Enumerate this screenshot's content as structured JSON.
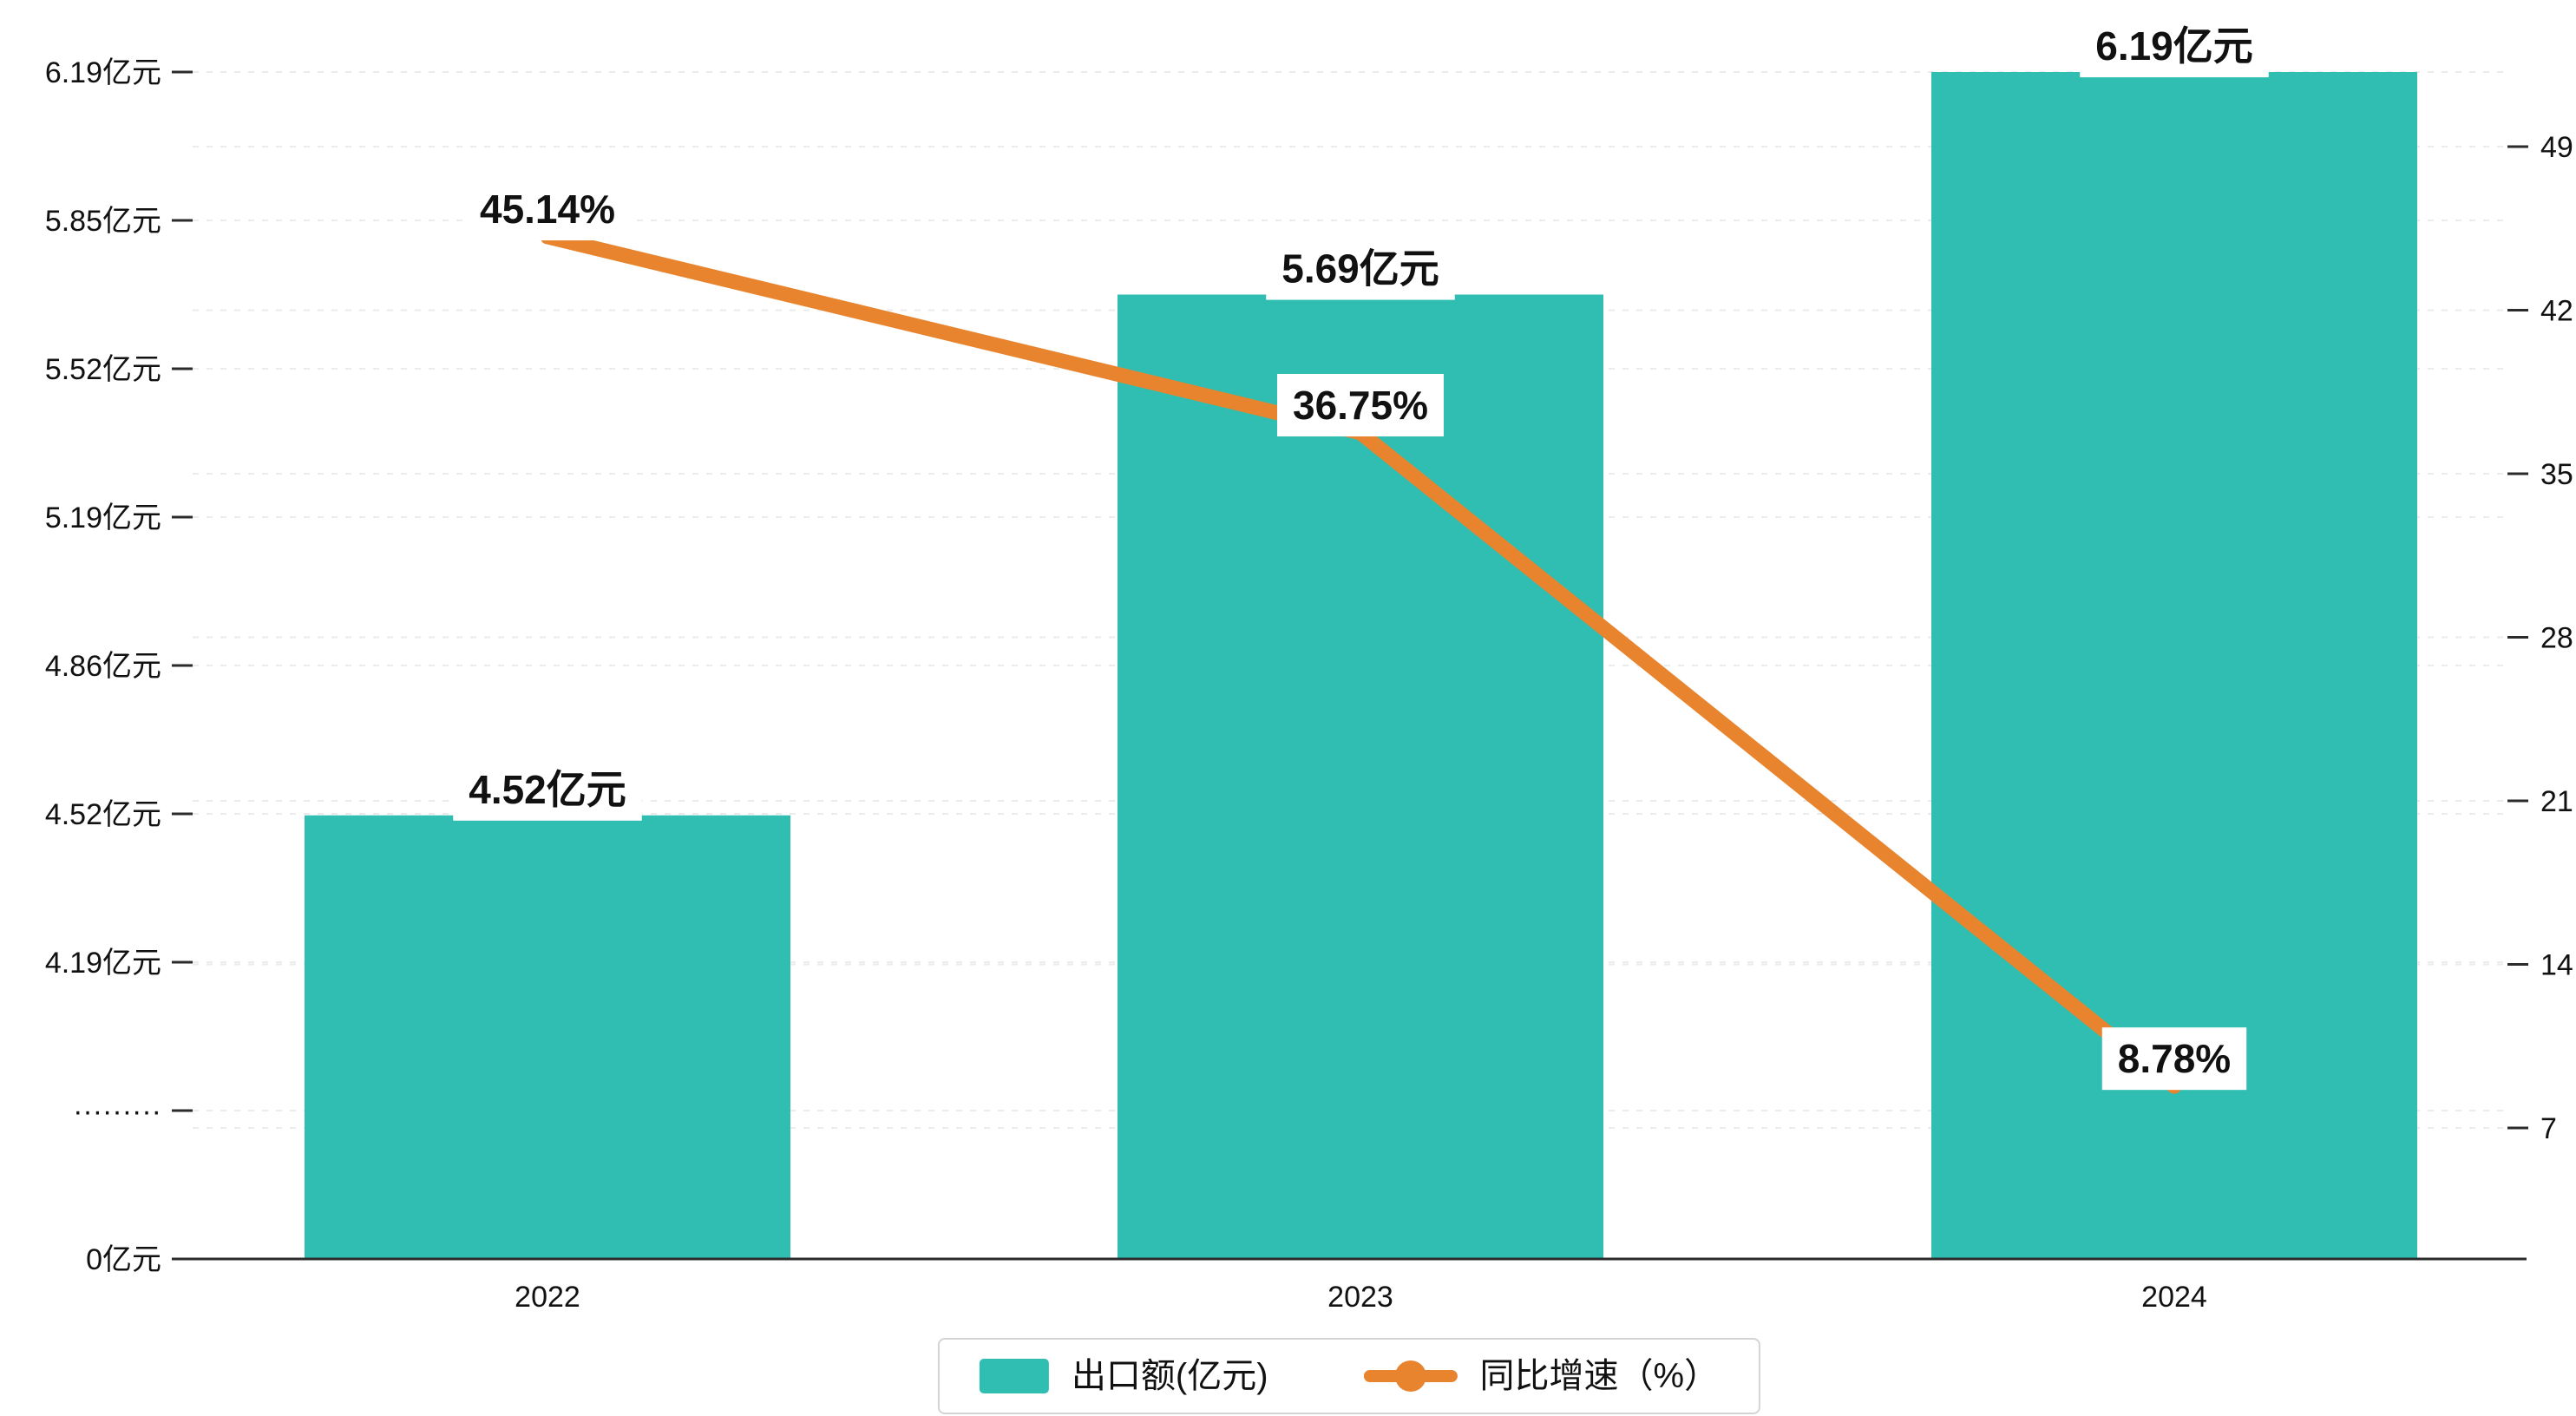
{
  "chart_data": {
    "type": "bar",
    "subtype": "bar-line-combo",
    "categories": [
      "2022",
      "2023",
      "2024"
    ],
    "series": [
      {
        "name": "出口额(亿元)",
        "type": "bar",
        "axis": "left",
        "color": "#2fbeb1",
        "values": [
          4.52,
          5.69,
          6.19
        ],
        "data_labels": [
          "4.52亿元",
          "5.69亿元",
          "6.19亿元"
        ]
      },
      {
        "name": "同比增速（%）",
        "type": "line",
        "axis": "right",
        "color": "#e8842e",
        "values": [
          45.14,
          36.75,
          8.78
        ],
        "data_labels": [
          "45.14%",
          "36.75%",
          "8.78%"
        ]
      }
    ],
    "x_axis": {
      "tick_labels": [
        "2022",
        "2023",
        "2024"
      ]
    },
    "left_axis": {
      "unit": "亿元",
      "tick_labels": [
        "6.19亿元",
        "5.85亿元",
        "5.52亿元",
        "5.19亿元",
        "4.86亿元",
        "4.52亿元",
        "4.19亿元",
        "·········",
        "0亿元"
      ],
      "tick_values": [
        6.19,
        5.85,
        5.52,
        5.19,
        4.86,
        4.52,
        4.19,
        null,
        0
      ],
      "has_break": true
    },
    "right_axis": {
      "unit": "%",
      "tick_labels": [
        "49",
        "42",
        "35",
        "28",
        "21",
        "14",
        "7"
      ],
      "tick_values": [
        49,
        42,
        35,
        28,
        21,
        14,
        7
      ]
    },
    "legend": {
      "position": "bottom-center",
      "items": [
        {
          "label": "出口额(亿元)",
          "marker": "rect",
          "color": "#2fbeb1"
        },
        {
          "label": "同比增速（%）",
          "marker": "line-dot",
          "color": "#e8842e"
        }
      ]
    },
    "grid": {
      "style": "dashed",
      "on": true
    },
    "colors": {
      "bar": "#2fbeb1",
      "line": "#e8842e",
      "axis": "#2b2b2b",
      "text": "#111111",
      "grid": "#ebebeb",
      "label_bg": "#ffffff",
      "legend_border": "#d4d4d4",
      "background": "#ffffff"
    }
  }
}
